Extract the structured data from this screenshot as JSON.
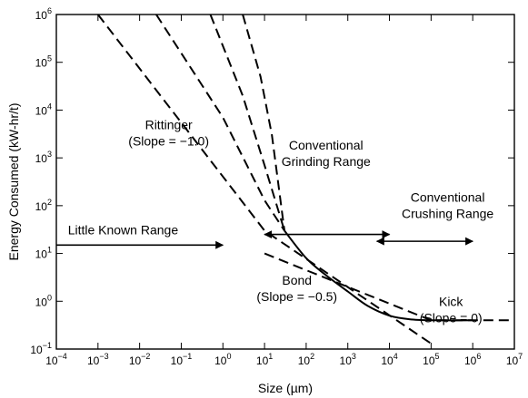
{
  "chart_data": {
    "type": "line",
    "xscale": "log",
    "yscale": "log",
    "xlim": [
      0.0001,
      10000000
    ],
    "ylim": [
      0.1,
      1000000
    ],
    "xlabel": "Size (µm)",
    "ylabel": "Energy Consumed (kW-hr/t)",
    "x_ticks": [
      {
        "base": "10",
        "exp": "−4",
        "value": 0.0001
      },
      {
        "base": "10",
        "exp": "−3",
        "value": 0.001
      },
      {
        "base": "10",
        "exp": "−2",
        "value": 0.01
      },
      {
        "base": "10",
        "exp": "−1",
        "value": 0.1
      },
      {
        "base": "10",
        "exp": "0",
        "value": 1
      },
      {
        "base": "10",
        "exp": "1",
        "value": 10
      },
      {
        "base": "10",
        "exp": "2",
        "value": 100
      },
      {
        "base": "10",
        "exp": "3",
        "value": 1000
      },
      {
        "base": "10",
        "exp": "4",
        "value": 10000
      },
      {
        "base": "10",
        "exp": "5",
        "value": 100000
      },
      {
        "base": "10",
        "exp": "6",
        "value": 1000000
      },
      {
        "base": "10",
        "exp": "7",
        "value": 10000000
      }
    ],
    "y_ticks": [
      {
        "base": "10",
        "exp": "−1",
        "value": 0.1
      },
      {
        "base": "10",
        "exp": "0",
        "value": 1
      },
      {
        "base": "10",
        "exp": "1",
        "value": 10
      },
      {
        "base": "10",
        "exp": "2",
        "value": 100
      },
      {
        "base": "10",
        "exp": "3",
        "value": 1000
      },
      {
        "base": "10",
        "exp": "4",
        "value": 10000
      },
      {
        "base": "10",
        "exp": "5",
        "value": 100000
      },
      {
        "base": "10",
        "exp": "6",
        "value": 1000000
      }
    ],
    "series": [
      {
        "style": "solid",
        "x": [
          30,
          100,
          300,
          1000,
          3000,
          10000,
          30000,
          100000,
          1000000
        ],
        "y": [
          30,
          8,
          3.5,
          1.6,
          0.8,
          0.5,
          0.42,
          0.4,
          0.4
        ]
      },
      {
        "style": "dashed",
        "x": [
          0.001,
          10,
          100000
        ],
        "y": [
          1000000,
          30,
          0.13
        ]
      },
      {
        "style": "dashed",
        "x": [
          10,
          100000,
          10000000
        ],
        "y": [
          10,
          0.4,
          0.4
        ]
      },
      {
        "style": "dashed",
        "x": [
          0.025,
          1,
          10,
          30
        ],
        "y": [
          1000000,
          7000,
          130,
          30
        ]
      },
      {
        "style": "dashed",
        "x": [
          0.5,
          3,
          10,
          30
        ],
        "y": [
          1000000,
          20000,
          700,
          30
        ]
      },
      {
        "style": "dashed",
        "x": [
          3,
          8,
          15,
          30
        ],
        "y": [
          1000000,
          50000,
          3000,
          30
        ]
      }
    ],
    "arrows": [
      {
        "from": [
          0.0001,
          15
        ],
        "to": [
          1,
          15
        ],
        "heads": "end"
      },
      {
        "from": [
          10,
          25
        ],
        "to": [
          10000,
          25
        ],
        "heads": "both"
      },
      {
        "from": [
          5000,
          18
        ],
        "to": [
          1000000,
          18
        ],
        "heads": "both"
      }
    ],
    "annotations": [
      {
        "lines": [
          "Rittinger",
          "(Slope = −1.0)"
        ],
        "at": [
          0.05,
          4000
        ]
      },
      {
        "lines": [
          "Conventional",
          "Grinding Range"
        ],
        "at": [
          300,
          1500
        ]
      },
      {
        "lines": [
          "Little Known Range"
        ],
        "at": [
          0.004,
          25
        ]
      },
      {
        "lines": [
          "Conventional",
          "Crushing Range"
        ],
        "at": [
          250000,
          120
        ]
      },
      {
        "lines": [
          "Bond",
          "(Slope = −0.5)"
        ],
        "at": [
          60,
          2.2
        ]
      },
      {
        "lines": [
          "Kick",
          "(Slope = 0)"
        ],
        "at": [
          300000,
          0.8
        ]
      }
    ]
  }
}
